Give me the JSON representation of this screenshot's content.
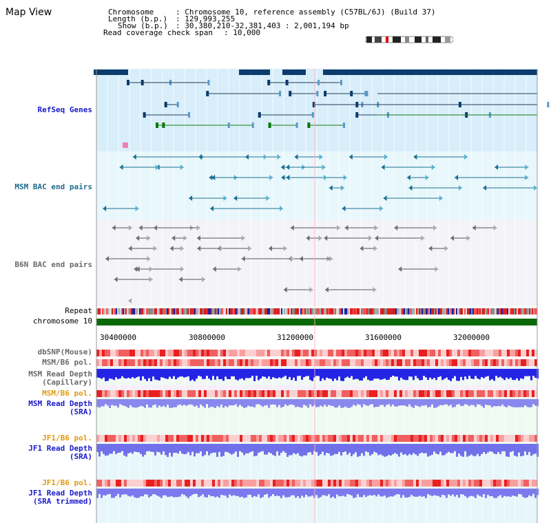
{
  "title": "Map View",
  "info": {
    "chromosome_key": "Chromosome",
    "chromosome_val": ": Chromosome 10, reference assembly (C57BL/6J) (Build 37)",
    "length_key": "Length (b.p.)",
    "length_val": ": 129,993,255",
    "show_key": "Show (b.p.)",
    "show_val": ": 30,380,210-32,381,403 : 2,001,194 bp",
    "coverage_key": "Read coverage check span",
    "coverage_val": ": 10,000"
  },
  "tracks": {
    "refseq": "RefSeq Genes",
    "msm_bac": "MSM BAC end pairs",
    "b6n_bac": "B6N BAC end pairs",
    "repeat": "Repeat",
    "chromosome": "chromosome 10",
    "dbsnp": "dbSNP(Mouse)",
    "msm_b6_pol": "MSM/B6 pol.",
    "msm_read_depth_cap_1": "MSM Read Depth",
    "msm_read_depth_cap_2": "(Capillary)",
    "msm_b6_pol_2": "MSM/B6 pol.",
    "msm_read_depth_sra_1": "MSM Read Depth",
    "msm_read_depth_sra_2": "(SRA)",
    "jf1_b6_pol": "JF1/B6 pol.",
    "jf1_read_depth_sra_1": "JF1 Read Depth",
    "jf1_read_depth_sra_2": "(SRA)",
    "jf1_b6_pol_2": "JF1/B6 pol.",
    "jf1_read_depth_trim_1": "JF1 Read Depth",
    "jf1_read_depth_trim_2": "(SRA trimmed)"
  },
  "axis": {
    "ticks": [
      "30400000",
      "30800000",
      "31200000",
      "31600000",
      "32000000"
    ]
  },
  "colors": {
    "refseq_bg": "#d8eefa",
    "bac_bg": "#e8f7fb",
    "b6n_bg": "#f4f4f8",
    "refseq_gene": "#0c3c6c",
    "msm_bac": "#1a6f93",
    "b6n_bac": "#707070",
    "chromosome_bar": "#0a6a0a",
    "depth_blue": "#2020e0",
    "depth_sra": "#8080f0",
    "pol_red": "#e82020"
  }
}
